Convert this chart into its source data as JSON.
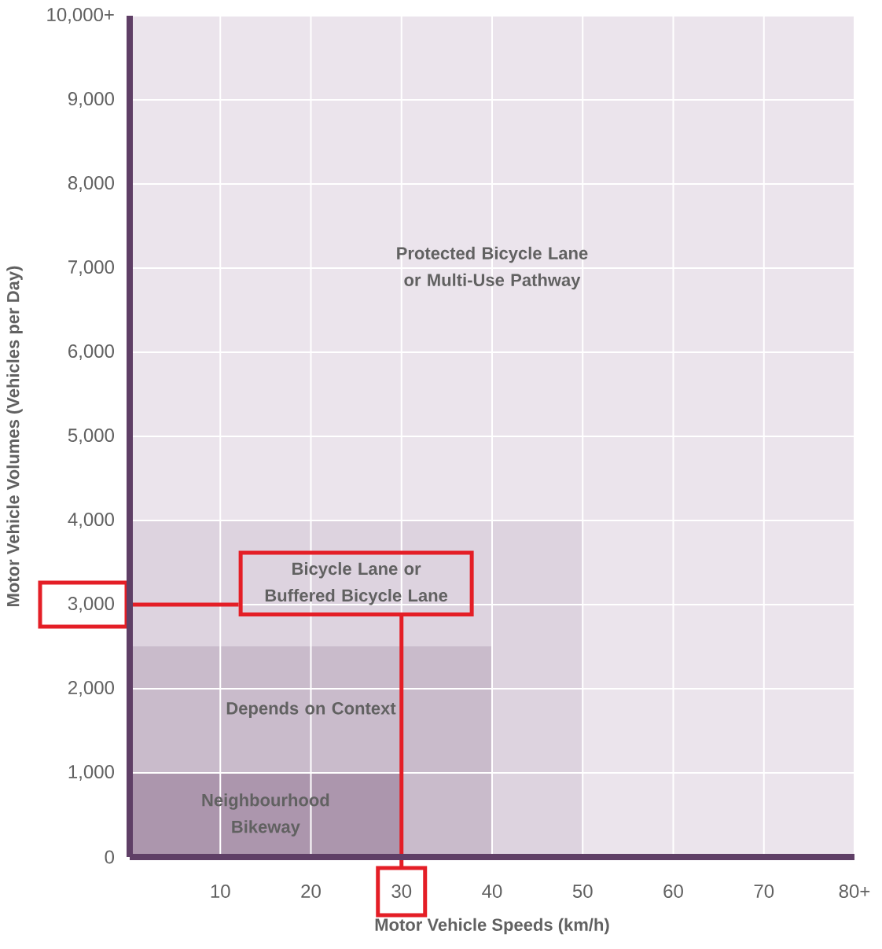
{
  "chart_data": {
    "type": "area",
    "xlabel": "Motor Vehicle Speeds (km/h)",
    "ylabel": "Motor Vehicle Volumes (Vehicles per Day)",
    "series": [
      {
        "name": "Bicycle Lane or Buffered Bicycle Lane",
        "color": "#ddd3df",
        "x": [
          0,
          50
        ],
        "values": [
          4000,
          4000
        ]
      },
      {
        "name": "Depends on Context",
        "color": "#c9bbcb",
        "x": [
          0,
          40
        ],
        "values": [
          2500,
          2500
        ]
      },
      {
        "name": "Neighbourhood Bikeway",
        "color": "#ac96ad",
        "x": [
          0,
          30
        ],
        "values": [
          1000,
          1000
        ]
      }
    ],
    "xlim": [
      0,
      80
    ],
    "ylim": [
      0,
      10000
    ],
    "xticks": [
      10,
      20,
      30,
      40,
      50,
      60,
      70,
      {
        "value": 80,
        "label": "80+"
      }
    ],
    "yticks": [
      0,
      {
        "value": 1000,
        "label": "1,000"
      },
      {
        "value": 2000,
        "label": "2,000"
      },
      {
        "value": 3000,
        "label": "3,000"
      },
      {
        "value": 4000,
        "label": "4,000"
      },
      {
        "value": 5000,
        "label": "5,000"
      },
      {
        "value": 6000,
        "label": "6,000"
      },
      {
        "value": 7000,
        "label": "7,000"
      },
      {
        "value": 8000,
        "label": "8,000"
      },
      {
        "value": 9000,
        "label": "9,000"
      },
      {
        "value": 10000,
        "label": "10,000+"
      }
    ],
    "grid": true,
    "bands": [
      {
        "axis": "x",
        "from": 0,
        "to": 80,
        "label": "Protected Bicycle Lane or Multi-Use Pathway",
        "color": "#ebe4ec"
      }
    ],
    "ref_lines": [
      {
        "axis": "y",
        "value": 3000,
        "color": "#e41e26"
      },
      {
        "axis": "x",
        "value": 30,
        "color": "#e41e26"
      }
    ]
  }
}
